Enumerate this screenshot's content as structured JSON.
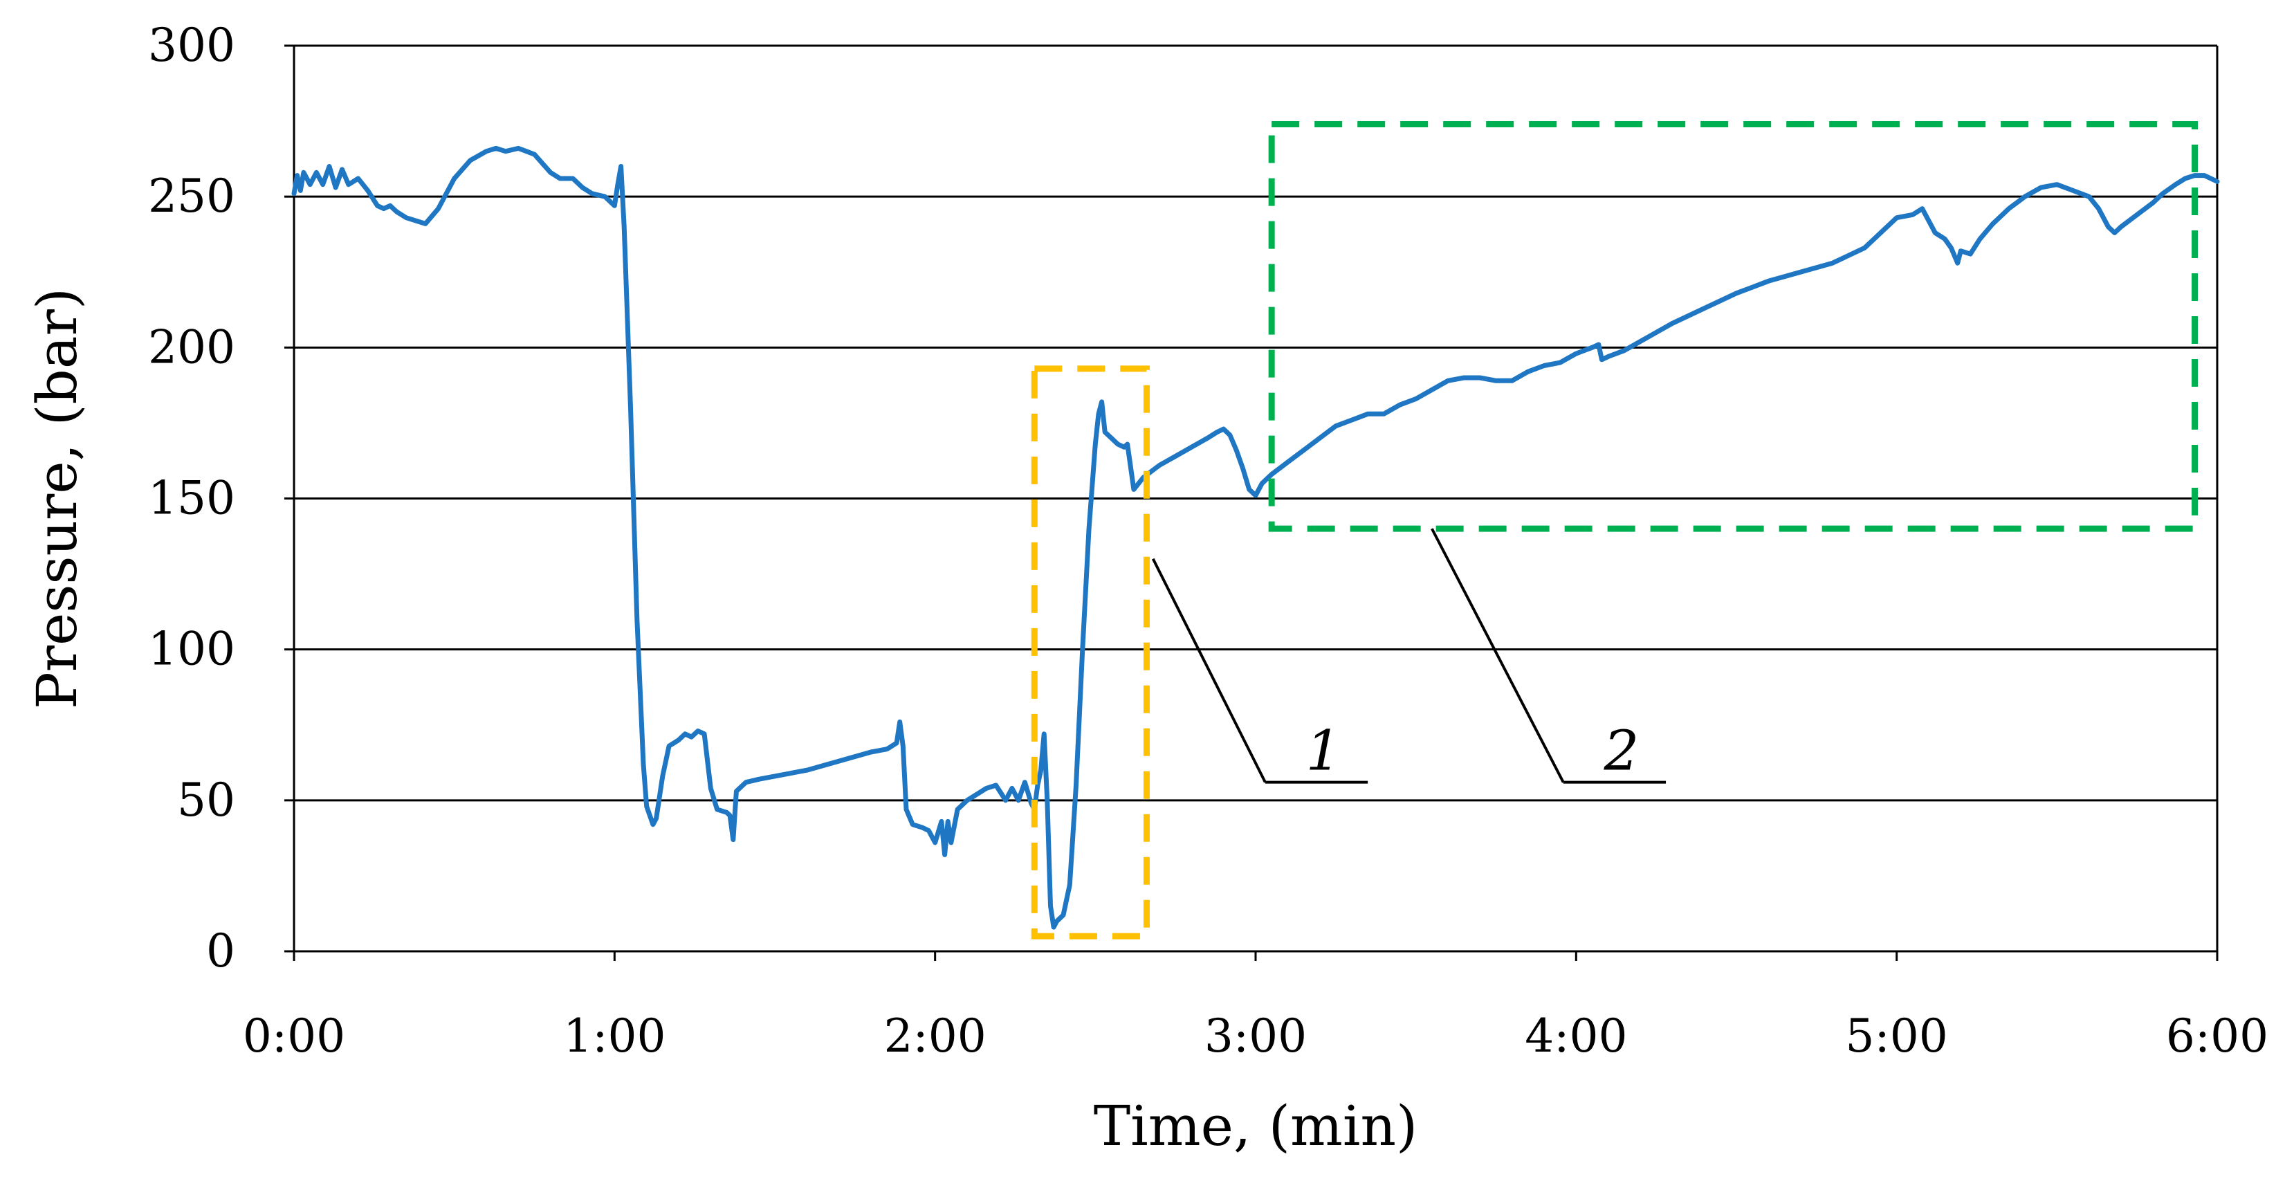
{
  "chart_data": {
    "type": "line",
    "title": "",
    "xlabel": "Time, (min)",
    "ylabel": "Pressure, (bar)",
    "xlim": [
      0,
      6
    ],
    "ylim": [
      0,
      300
    ],
    "x_ticks": [
      {
        "value": 0,
        "label": "0:00"
      },
      {
        "value": 1,
        "label": "1:00"
      },
      {
        "value": 2,
        "label": "2:00"
      },
      {
        "value": 3,
        "label": "3:00"
      },
      {
        "value": 4,
        "label": "4:00"
      },
      {
        "value": 5,
        "label": "5:00"
      },
      {
        "value": 6,
        "label": "6:00"
      }
    ],
    "y_ticks": [
      {
        "value": 0,
        "label": "0"
      },
      {
        "value": 50,
        "label": "50"
      },
      {
        "value": 100,
        "label": "100"
      },
      {
        "value": 150,
        "label": "150"
      },
      {
        "value": 200,
        "label": "200"
      },
      {
        "value": 250,
        "label": "250"
      },
      {
        "value": 300,
        "label": "300"
      }
    ],
    "grid": "horizontal",
    "series": [
      {
        "name": "Pressure",
        "color": "#1f77c4",
        "points": [
          [
            0.0,
            251
          ],
          [
            0.01,
            257
          ],
          [
            0.02,
            252
          ],
          [
            0.03,
            258
          ],
          [
            0.05,
            254
          ],
          [
            0.07,
            258
          ],
          [
            0.09,
            254
          ],
          [
            0.11,
            260
          ],
          [
            0.13,
            253
          ],
          [
            0.15,
            259
          ],
          [
            0.17,
            254
          ],
          [
            0.2,
            256
          ],
          [
            0.23,
            252
          ],
          [
            0.26,
            247
          ],
          [
            0.28,
            246
          ],
          [
            0.3,
            247
          ],
          [
            0.32,
            245
          ],
          [
            0.35,
            243
          ],
          [
            0.38,
            242
          ],
          [
            0.41,
            241
          ],
          [
            0.45,
            246
          ],
          [
            0.5,
            256
          ],
          [
            0.55,
            262
          ],
          [
            0.6,
            265
          ],
          [
            0.63,
            266
          ],
          [
            0.66,
            265
          ],
          [
            0.7,
            266
          ],
          [
            0.75,
            264
          ],
          [
            0.8,
            258
          ],
          [
            0.83,
            256
          ],
          [
            0.87,
            256
          ],
          [
            0.9,
            253
          ],
          [
            0.93,
            251
          ],
          [
            0.97,
            250
          ],
          [
            1.0,
            247
          ],
          [
            1.01,
            254
          ],
          [
            1.02,
            260
          ],
          [
            1.03,
            240
          ],
          [
            1.05,
            180
          ],
          [
            1.07,
            110
          ],
          [
            1.09,
            62
          ],
          [
            1.1,
            48
          ],
          [
            1.12,
            42
          ],
          [
            1.13,
            44
          ],
          [
            1.15,
            58
          ],
          [
            1.17,
            68
          ],
          [
            1.2,
            70
          ],
          [
            1.22,
            72
          ],
          [
            1.24,
            71
          ],
          [
            1.26,
            73
          ],
          [
            1.28,
            72
          ],
          [
            1.3,
            54
          ],
          [
            1.32,
            47
          ],
          [
            1.35,
            46
          ],
          [
            1.36,
            45
          ],
          [
            1.37,
            37
          ],
          [
            1.38,
            53
          ],
          [
            1.41,
            56
          ],
          [
            1.45,
            57
          ],
          [
            1.5,
            58
          ],
          [
            1.6,
            60
          ],
          [
            1.7,
            63
          ],
          [
            1.8,
            66
          ],
          [
            1.85,
            67
          ],
          [
            1.88,
            69
          ],
          [
            1.89,
            76
          ],
          [
            1.9,
            68
          ],
          [
            1.91,
            47
          ],
          [
            1.93,
            42
          ],
          [
            1.96,
            41
          ],
          [
            1.98,
            40
          ],
          [
            2.0,
            36
          ],
          [
            2.02,
            43
          ],
          [
            2.03,
            32
          ],
          [
            2.04,
            43
          ],
          [
            2.05,
            36
          ],
          [
            2.07,
            47
          ],
          [
            2.1,
            50
          ],
          [
            2.13,
            52
          ],
          [
            2.16,
            54
          ],
          [
            2.19,
            55
          ],
          [
            2.22,
            50
          ],
          [
            2.24,
            54
          ],
          [
            2.26,
            50
          ],
          [
            2.28,
            56
          ],
          [
            2.3,
            49
          ],
          [
            2.31,
            47
          ],
          [
            2.32,
            55
          ],
          [
            2.33,
            60
          ],
          [
            2.34,
            72
          ],
          [
            2.35,
            50
          ],
          [
            2.36,
            15
          ],
          [
            2.37,
            8
          ],
          [
            2.38,
            10
          ],
          [
            2.4,
            12
          ],
          [
            2.42,
            22
          ],
          [
            2.44,
            55
          ],
          [
            2.46,
            100
          ],
          [
            2.48,
            140
          ],
          [
            2.5,
            168
          ],
          [
            2.51,
            178
          ],
          [
            2.52,
            182
          ],
          [
            2.53,
            172
          ],
          [
            2.55,
            170
          ],
          [
            2.57,
            168
          ],
          [
            2.59,
            167
          ],
          [
            2.6,
            168
          ],
          [
            2.62,
            153
          ],
          [
            2.65,
            157
          ],
          [
            2.7,
            161
          ],
          [
            2.75,
            164
          ],
          [
            2.8,
            167
          ],
          [
            2.85,
            170
          ],
          [
            2.88,
            172
          ],
          [
            2.9,
            173
          ],
          [
            2.92,
            171
          ],
          [
            2.94,
            166
          ],
          [
            2.96,
            160
          ],
          [
            2.98,
            153
          ],
          [
            3.0,
            151
          ],
          [
            3.02,
            155
          ],
          [
            3.05,
            158
          ],
          [
            3.1,
            162
          ],
          [
            3.15,
            166
          ],
          [
            3.2,
            170
          ],
          [
            3.25,
            174
          ],
          [
            3.3,
            176
          ],
          [
            3.35,
            178
          ],
          [
            3.4,
            178
          ],
          [
            3.45,
            181
          ],
          [
            3.5,
            183
          ],
          [
            3.55,
            186
          ],
          [
            3.6,
            189
          ],
          [
            3.65,
            190
          ],
          [
            3.7,
            190
          ],
          [
            3.75,
            189
          ],
          [
            3.8,
            189
          ],
          [
            3.85,
            192
          ],
          [
            3.9,
            194
          ],
          [
            3.95,
            195
          ],
          [
            4.0,
            198
          ],
          [
            4.05,
            200
          ],
          [
            4.07,
            201
          ],
          [
            4.08,
            196
          ],
          [
            4.1,
            197
          ],
          [
            4.15,
            199
          ],
          [
            4.2,
            202
          ],
          [
            4.3,
            208
          ],
          [
            4.4,
            213
          ],
          [
            4.5,
            218
          ],
          [
            4.55,
            220
          ],
          [
            4.6,
            222
          ],
          [
            4.7,
            225
          ],
          [
            4.8,
            228
          ],
          [
            4.9,
            233
          ],
          [
            5.0,
            243
          ],
          [
            5.05,
            244
          ],
          [
            5.08,
            246
          ],
          [
            5.1,
            242
          ],
          [
            5.12,
            238
          ],
          [
            5.15,
            236
          ],
          [
            5.17,
            233
          ],
          [
            5.19,
            228
          ],
          [
            5.2,
            232
          ],
          [
            5.23,
            231
          ],
          [
            5.26,
            236
          ],
          [
            5.3,
            241
          ],
          [
            5.35,
            246
          ],
          [
            5.4,
            250
          ],
          [
            5.45,
            253
          ],
          [
            5.5,
            254
          ],
          [
            5.55,
            252
          ],
          [
            5.6,
            250
          ],
          [
            5.63,
            246
          ],
          [
            5.66,
            240
          ],
          [
            5.68,
            238
          ],
          [
            5.7,
            240
          ],
          [
            5.75,
            244
          ],
          [
            5.8,
            248
          ],
          [
            5.83,
            251
          ],
          [
            5.87,
            254
          ],
          [
            5.9,
            256
          ],
          [
            5.93,
            257
          ],
          [
            5.96,
            257
          ],
          [
            6.0,
            255
          ]
        ]
      }
    ],
    "annotations": [
      {
        "label": "1",
        "color": "#ffc000",
        "style": "dashed-box",
        "x_range": [
          2.31,
          2.66
        ],
        "y_range": [
          5,
          193
        ],
        "leader_from": [
          2.68,
          130
        ],
        "leader_to": [
          3.03,
          56
        ],
        "underline_to": [
          3.35,
          56
        ]
      },
      {
        "label": "2",
        "color": "#00b050",
        "style": "dashed-box",
        "x_range": [
          3.05,
          5.93
        ],
        "y_range": [
          140,
          274
        ],
        "leader_from": [
          3.55,
          140
        ],
        "leader_to": [
          3.96,
          56
        ],
        "underline_to": [
          4.28,
          56
        ]
      }
    ]
  }
}
